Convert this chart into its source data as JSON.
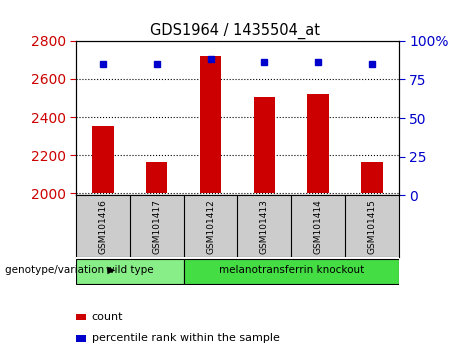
{
  "title": "GDS1964 / 1435504_at",
  "samples": [
    "GSM101416",
    "GSM101417",
    "GSM101412",
    "GSM101413",
    "GSM101414",
    "GSM101415"
  ],
  "counts": [
    2355,
    2165,
    2720,
    2505,
    2520,
    2165
  ],
  "percentile_ranks": [
    85,
    85,
    88,
    86,
    86,
    85
  ],
  "ylim_left": [
    1990,
    2800
  ],
  "ylim_right": [
    0,
    100
  ],
  "yticks_left": [
    2000,
    2200,
    2400,
    2600,
    2800
  ],
  "yticks_right": [
    0,
    25,
    50,
    75,
    100
  ],
  "bar_color": "#cc0000",
  "dot_color": "#0000cc",
  "bar_bottom": 2000,
  "groups": [
    {
      "label": "wild type",
      "indices": [
        0,
        1
      ],
      "color": "#88ee88"
    },
    {
      "label": "melanotransferrin knockout",
      "indices": [
        2,
        3,
        4,
        5
      ],
      "color": "#44dd44"
    }
  ],
  "group_row_label": "genotype/variation",
  "legend_count_label": "count",
  "legend_pct_label": "percentile rank within the sample",
  "bg_color": "#ffffff",
  "plot_bg": "#ffffff",
  "sample_row_color": "#cccccc",
  "tick_label_color_left": "#cc0000",
  "tick_label_color_right": "#0000cc",
  "right_tick_labels": [
    "0",
    "25",
    "50",
    "75",
    "100%"
  ]
}
